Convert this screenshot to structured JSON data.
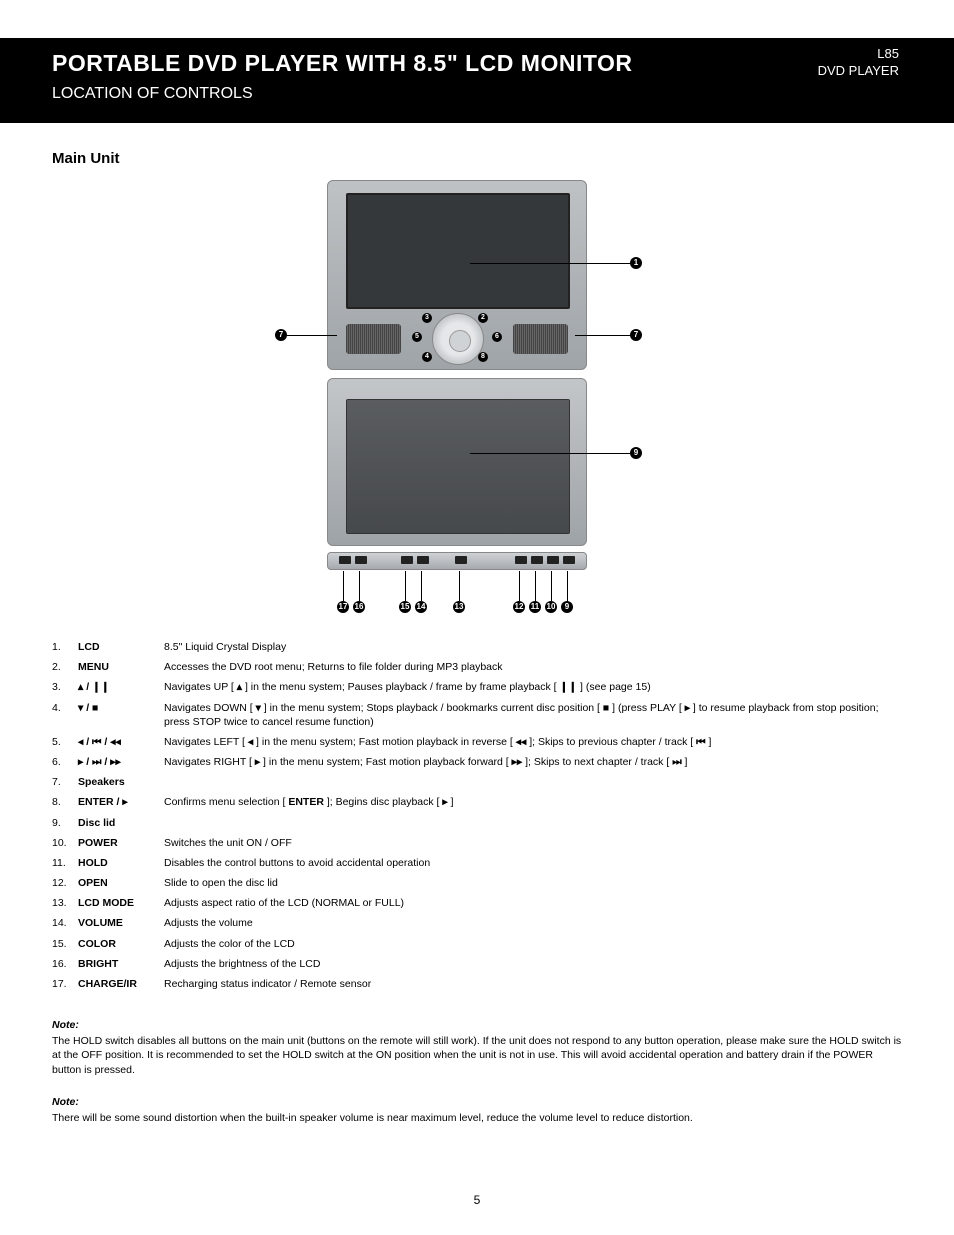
{
  "header": {
    "title": "PORTABLE DVD PLAYER WITH 8.5\" LCD MONITOR",
    "subtitle": "LOCATION OF CONTROLS",
    "page_indicator_top": "L85",
    "page_indicator_bottom": "DVD PLAYER"
  },
  "section_title": "Main Unit",
  "callouts": [
    "1",
    "2",
    "3",
    "4",
    "5",
    "6",
    "7",
    "8",
    "9",
    "10",
    "11",
    "12",
    "13",
    "14",
    "15",
    "16",
    "17"
  ],
  "legend": [
    {
      "num": "1.",
      "label": "LCD",
      "desc": "8.5\" Liquid Crystal Display"
    },
    {
      "num": "2.",
      "label": "MENU",
      "desc": "Accesses the DVD root menu; Returns to file folder during MP3 playback"
    },
    {
      "num": "3.",
      "label": "▴ / ❙❙",
      "desc": "Navigates UP [ <b>▴</b> ] in the menu system; Pauses playback / frame by frame playback [ <b>❙❙</b> ] (see page 15)"
    },
    {
      "num": "4.",
      "label": "▾ / ■",
      "desc": "Navigates DOWN [ <b>▾</b> ] in the menu system; Stops playback / bookmarks current disc position [ <b>■</b> ] (press PLAY [ <b>▸</b> ] to resume playback from stop position; press STOP twice to cancel resume function)"
    },
    {
      "num": "5.",
      "label": "◂ / ⏮ / ◂◂",
      "desc": "Navigates LEFT [ <b>◂</b> ] in the menu system; Fast motion playback in reverse [ <b>◂◂</b> ]; Skips to previous chapter / track [ <b>⏮</b> ]"
    },
    {
      "num": "6.",
      "label": "▸ / ⏭ / ▸▸",
      "desc": "Navigates RIGHT [ <b>▸</b> ] in the menu system; Fast motion playback forward [ <b>▸▸</b> ]; Skips to next chapter / track [ <b>⏭</b> ]"
    },
    {
      "num": "7.",
      "label": "Speakers",
      "desc": ""
    },
    {
      "num": "8.",
      "label": "ENTER / ▸",
      "desc": "Confirms menu selection [ <b>ENTER</b> ]; Begins disc playback [ <b>▸</b> ]"
    },
    {
      "num": "9.",
      "label": "Disc lid",
      "desc": ""
    },
    {
      "num": "10.",
      "label": "POWER",
      "desc": "Switches the unit ON / OFF"
    },
    {
      "num": "11.",
      "label": "HOLD",
      "desc": "Disables the control buttons to avoid accidental operation"
    },
    {
      "num": "12.",
      "label": "OPEN",
      "desc": "Slide to open the disc lid"
    },
    {
      "num": "13.",
      "label": "LCD MODE",
      "desc": "Adjusts aspect ratio of the LCD (NORMAL or FULL)"
    },
    {
      "num": "14.",
      "label": "VOLUME",
      "desc": "Adjusts the volume"
    },
    {
      "num": "15.",
      "label": "COLOR",
      "desc": "Adjusts the color of the LCD"
    },
    {
      "num": "16.",
      "label": "BRIGHT",
      "desc": "Adjusts the brightness of the LCD"
    },
    {
      "num": "17.",
      "label": "CHARGE/IR",
      "desc": "Recharging status indicator / Remote sensor"
    }
  ],
  "notes": [
    {
      "title": "Note:",
      "text": "The HOLD switch disables all buttons on the main unit (buttons on the remote will still work). If the unit does not respond to any button operation, please make sure the HOLD switch is at the OFF position. It is recommended to set the HOLD switch at the ON position when the unit is not in use. This will avoid accidental operation and battery drain if the POWER button is pressed."
    },
    {
      "title": "Note:",
      "text": "There will be some sound distortion when the built-in speaker volume is near maximum level, reduce the volume level to reduce distortion."
    }
  ],
  "page_number": "5",
  "colors": {
    "black": "#000000",
    "white": "#ffffff",
    "device_light": "#c3c6c9",
    "device_dark": "#46494c"
  }
}
